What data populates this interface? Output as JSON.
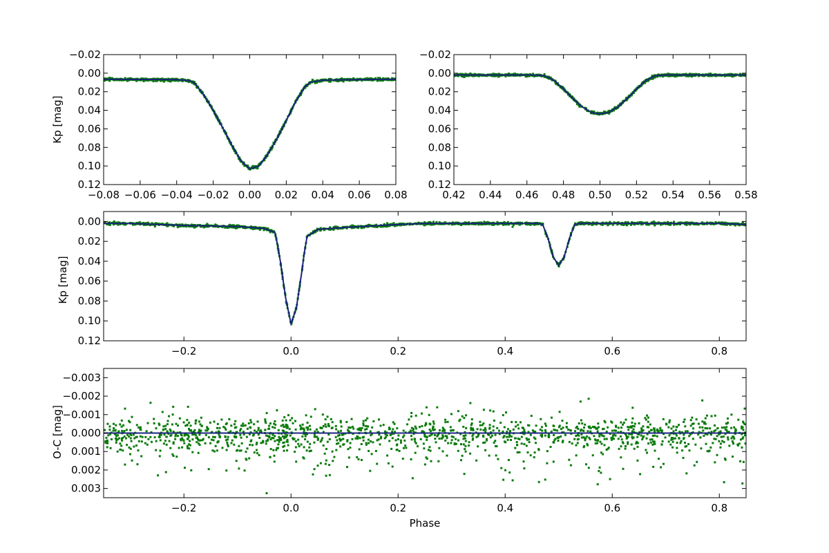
{
  "chart_data": [
    {
      "type": "scatter",
      "panel": "primary-eclipse",
      "ylabel": "Kp [mag]",
      "xlim": [
        -0.08,
        0.08
      ],
      "ylim": [
        -0.02,
        0.12
      ],
      "y_inverted": true,
      "xticks": [
        "−0.08",
        "−0.06",
        "−0.04",
        "−0.02",
        "0.00",
        "0.02",
        "0.04",
        "0.06",
        "0.08"
      ],
      "yticks": [
        "−0.02",
        "0.00",
        "0.02",
        "0.04",
        "0.06",
        "0.08",
        "0.10",
        "0.12"
      ],
      "model": {
        "x": [
          -0.08,
          -0.04,
          -0.033,
          -0.03,
          -0.025,
          -0.02,
          -0.015,
          -0.01,
          -0.005,
          0.0,
          0.005,
          0.01,
          0.015,
          0.02,
          0.025,
          0.03,
          0.033,
          0.04,
          0.08
        ],
        "y": [
          0.0065,
          0.007,
          0.008,
          0.011,
          0.024,
          0.04,
          0.058,
          0.077,
          0.094,
          0.103,
          0.1,
          0.087,
          0.07,
          0.051,
          0.031,
          0.015,
          0.01,
          0.0075,
          0.0065
        ]
      }
    },
    {
      "type": "scatter",
      "panel": "secondary-eclipse",
      "ylabel": "",
      "xlim": [
        0.42,
        0.58
      ],
      "ylim": [
        -0.02,
        0.12
      ],
      "y_inverted": true,
      "xticks": [
        "0.42",
        "0.44",
        "0.46",
        "0.48",
        "0.50",
        "0.52",
        "0.54",
        "0.56",
        "0.58"
      ],
      "yticks": [
        "−0.02",
        "0.00",
        "0.02",
        "0.04",
        "0.06",
        "0.08",
        "0.10",
        "0.12"
      ],
      "model": {
        "x": [
          0.42,
          0.465,
          0.47,
          0.475,
          0.48,
          0.485,
          0.49,
          0.495,
          0.5,
          0.505,
          0.51,
          0.515,
          0.52,
          0.525,
          0.53,
          0.535,
          0.58
        ],
        "y": [
          0.002,
          0.002,
          0.003,
          0.008,
          0.017,
          0.027,
          0.036,
          0.042,
          0.044,
          0.042,
          0.036,
          0.027,
          0.017,
          0.008,
          0.003,
          0.002,
          0.002
        ]
      }
    },
    {
      "type": "scatter",
      "panel": "full-light-curve",
      "ylabel": "Kp [mag]",
      "xlim": [
        -0.35,
        0.85
      ],
      "ylim": [
        -0.01,
        0.12
      ],
      "y_inverted": true,
      "xticks": [
        "−0.2",
        "0.0",
        "0.2",
        "0.4",
        "0.6",
        "0.8"
      ],
      "yticks": [
        "0.00",
        "0.02",
        "0.04",
        "0.06",
        "0.08",
        "0.10",
        "0.12"
      ],
      "model": {
        "x": [
          -0.35,
          -0.3,
          -0.2,
          -0.1,
          -0.05,
          -0.03,
          -0.025,
          -0.02,
          -0.01,
          0.0,
          0.01,
          0.02,
          0.025,
          0.03,
          0.05,
          0.1,
          0.2,
          0.25,
          0.3,
          0.4,
          0.46,
          0.47,
          0.48,
          0.49,
          0.5,
          0.51,
          0.52,
          0.53,
          0.54,
          0.6,
          0.7,
          0.8,
          0.85
        ],
        "y": [
          0.002,
          0.002,
          0.004,
          0.005,
          0.007,
          0.011,
          0.024,
          0.04,
          0.077,
          0.103,
          0.087,
          0.051,
          0.031,
          0.015,
          0.008,
          0.006,
          0.003,
          0.002,
          0.002,
          0.002,
          0.002,
          0.003,
          0.017,
          0.036,
          0.044,
          0.036,
          0.017,
          0.003,
          0.002,
          0.002,
          0.002,
          0.002,
          0.003
        ]
      }
    },
    {
      "type": "scatter",
      "panel": "residuals",
      "ylabel": "O-C [mag]",
      "xlabel": "Phase",
      "xlim": [
        -0.35,
        0.85
      ],
      "ylim": [
        -0.0035,
        0.0035
      ],
      "y_inverted": true,
      "xticks": [
        "−0.2",
        "0.0",
        "0.2",
        "0.4",
        "0.6",
        "0.8"
      ],
      "yticks": [
        "−0.003",
        "−0.002",
        "−0.001",
        "0.000",
        "0.001",
        "0.002",
        "0.003"
      ],
      "zero_line": 0.0
    }
  ]
}
